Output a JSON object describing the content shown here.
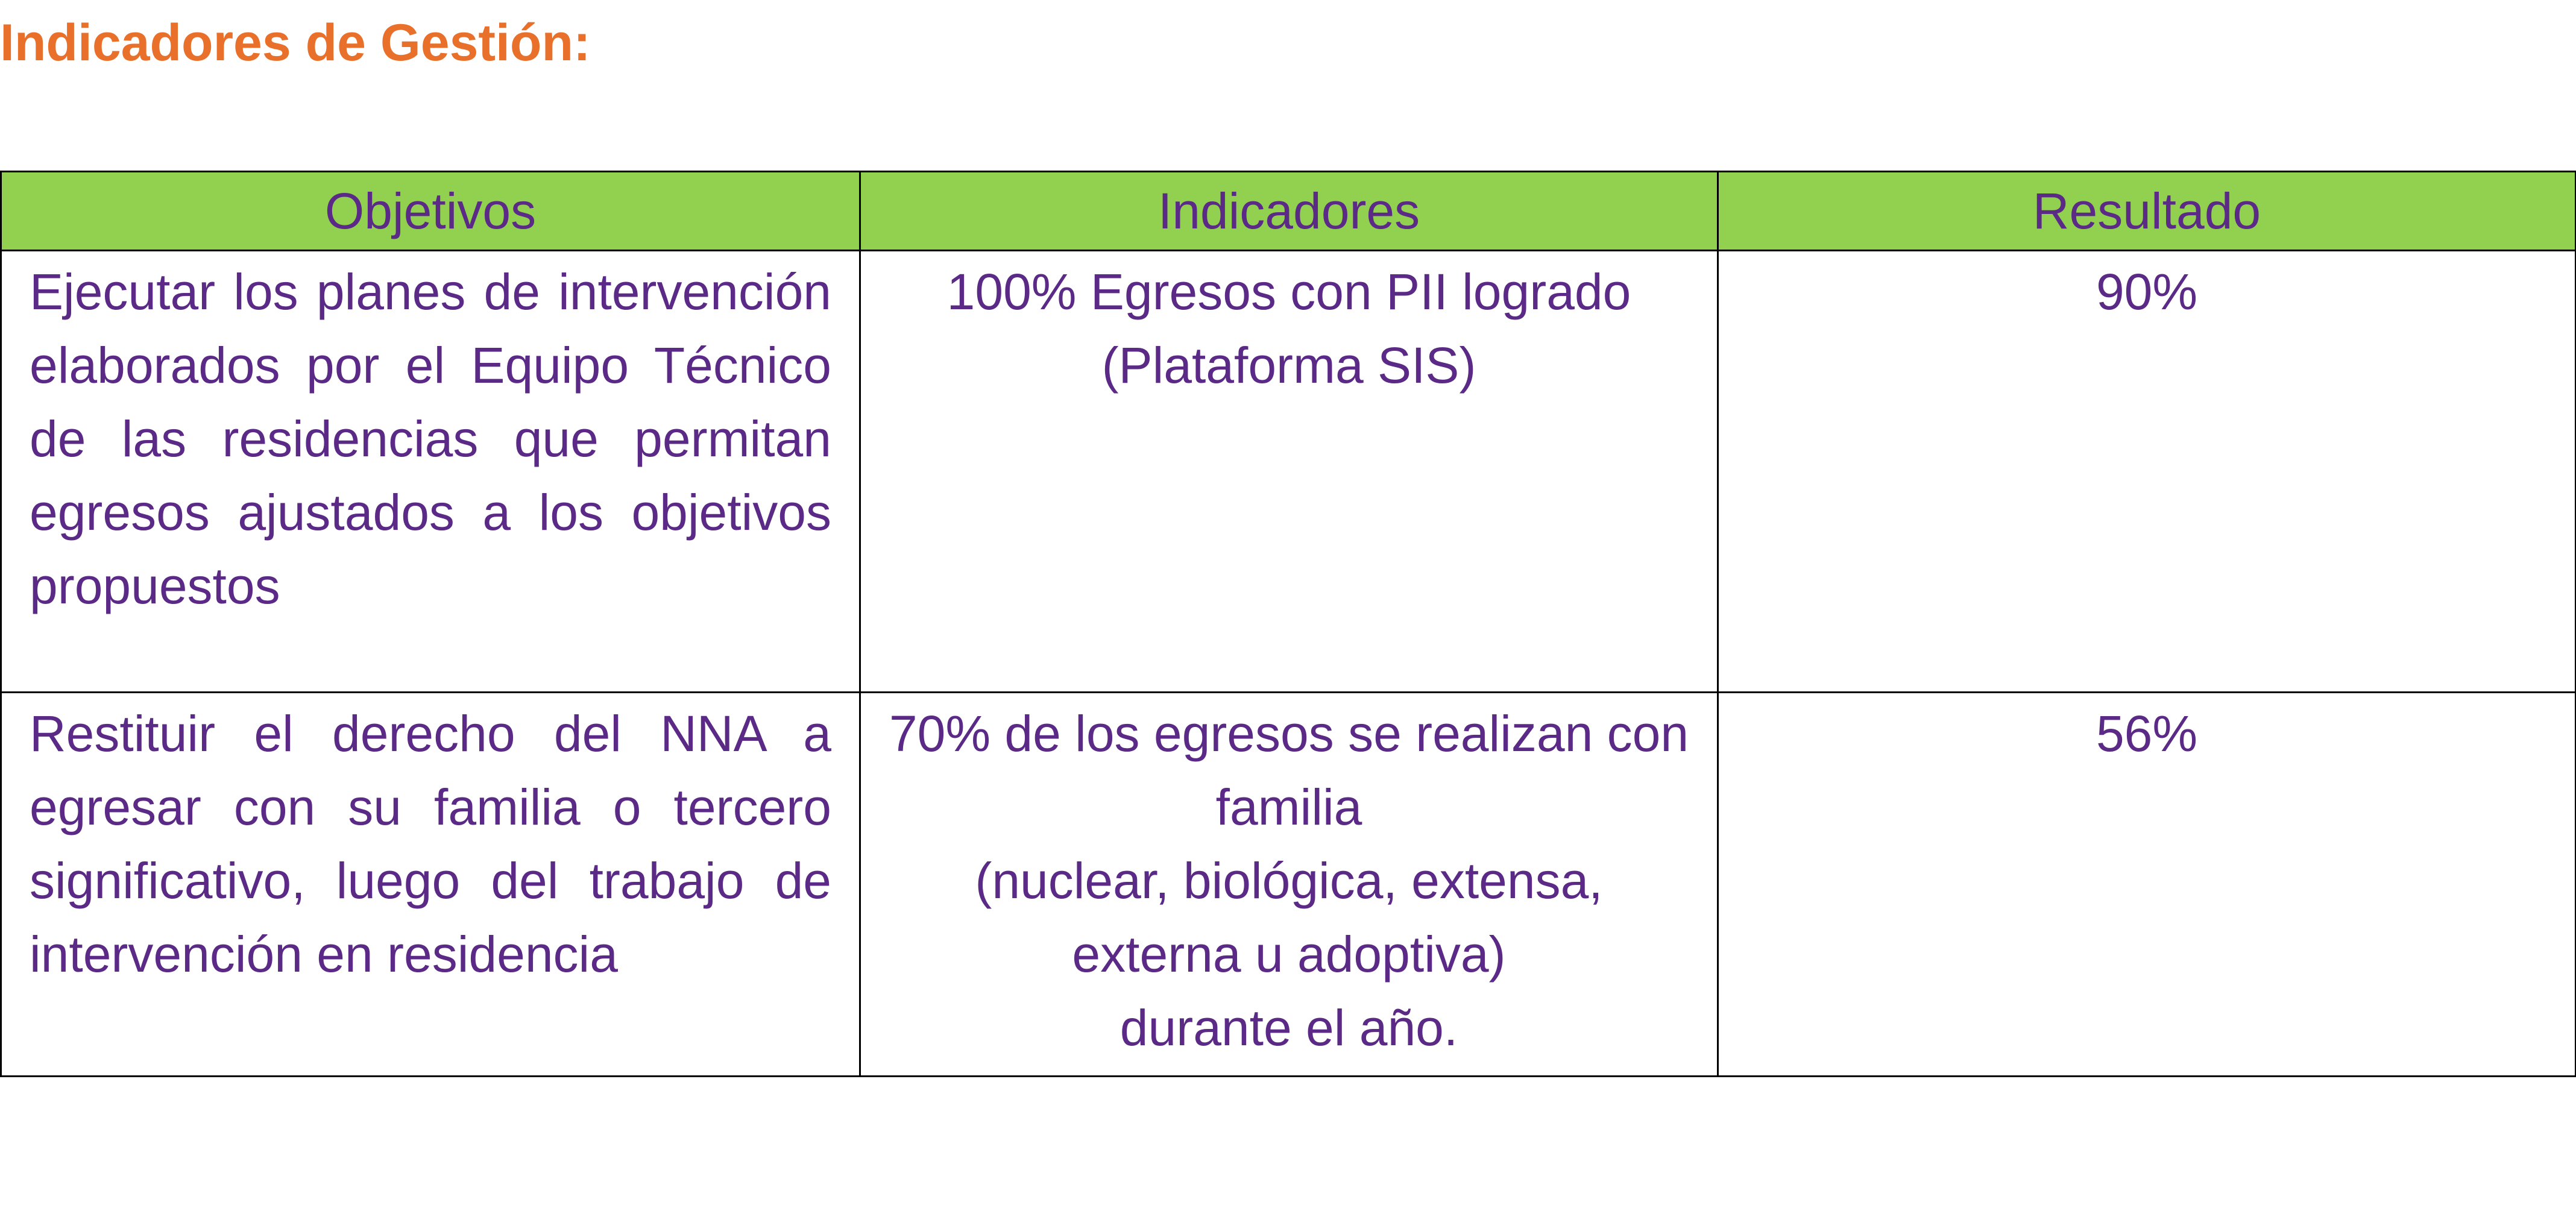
{
  "header": {
    "title": "Indicadores de Gestión:"
  },
  "table": {
    "columns": [
      "Objetivos",
      "Indicadores",
      "Resultado"
    ],
    "rows": [
      {
        "objective": "Ejecutar los planes de intervención elaborados por el Equipo Técnico de las residencias que permitan egresos ajustados a los objetivos propuestos",
        "indicator": [
          "100% Egresos con PII logrado",
          "(Plataforma SIS)"
        ],
        "result": "90%"
      },
      {
        "objective": "Restituir el derecho del NNA a egresar con su familia o tercero significativo, luego del trabajo de intervención en residencia",
        "indicator": [
          "70% de los egresos se realizan con familia",
          "(nuclear, biológica, extensa, externa u adoptiva)",
          "durante el año."
        ],
        "result": "56%"
      }
    ]
  }
}
